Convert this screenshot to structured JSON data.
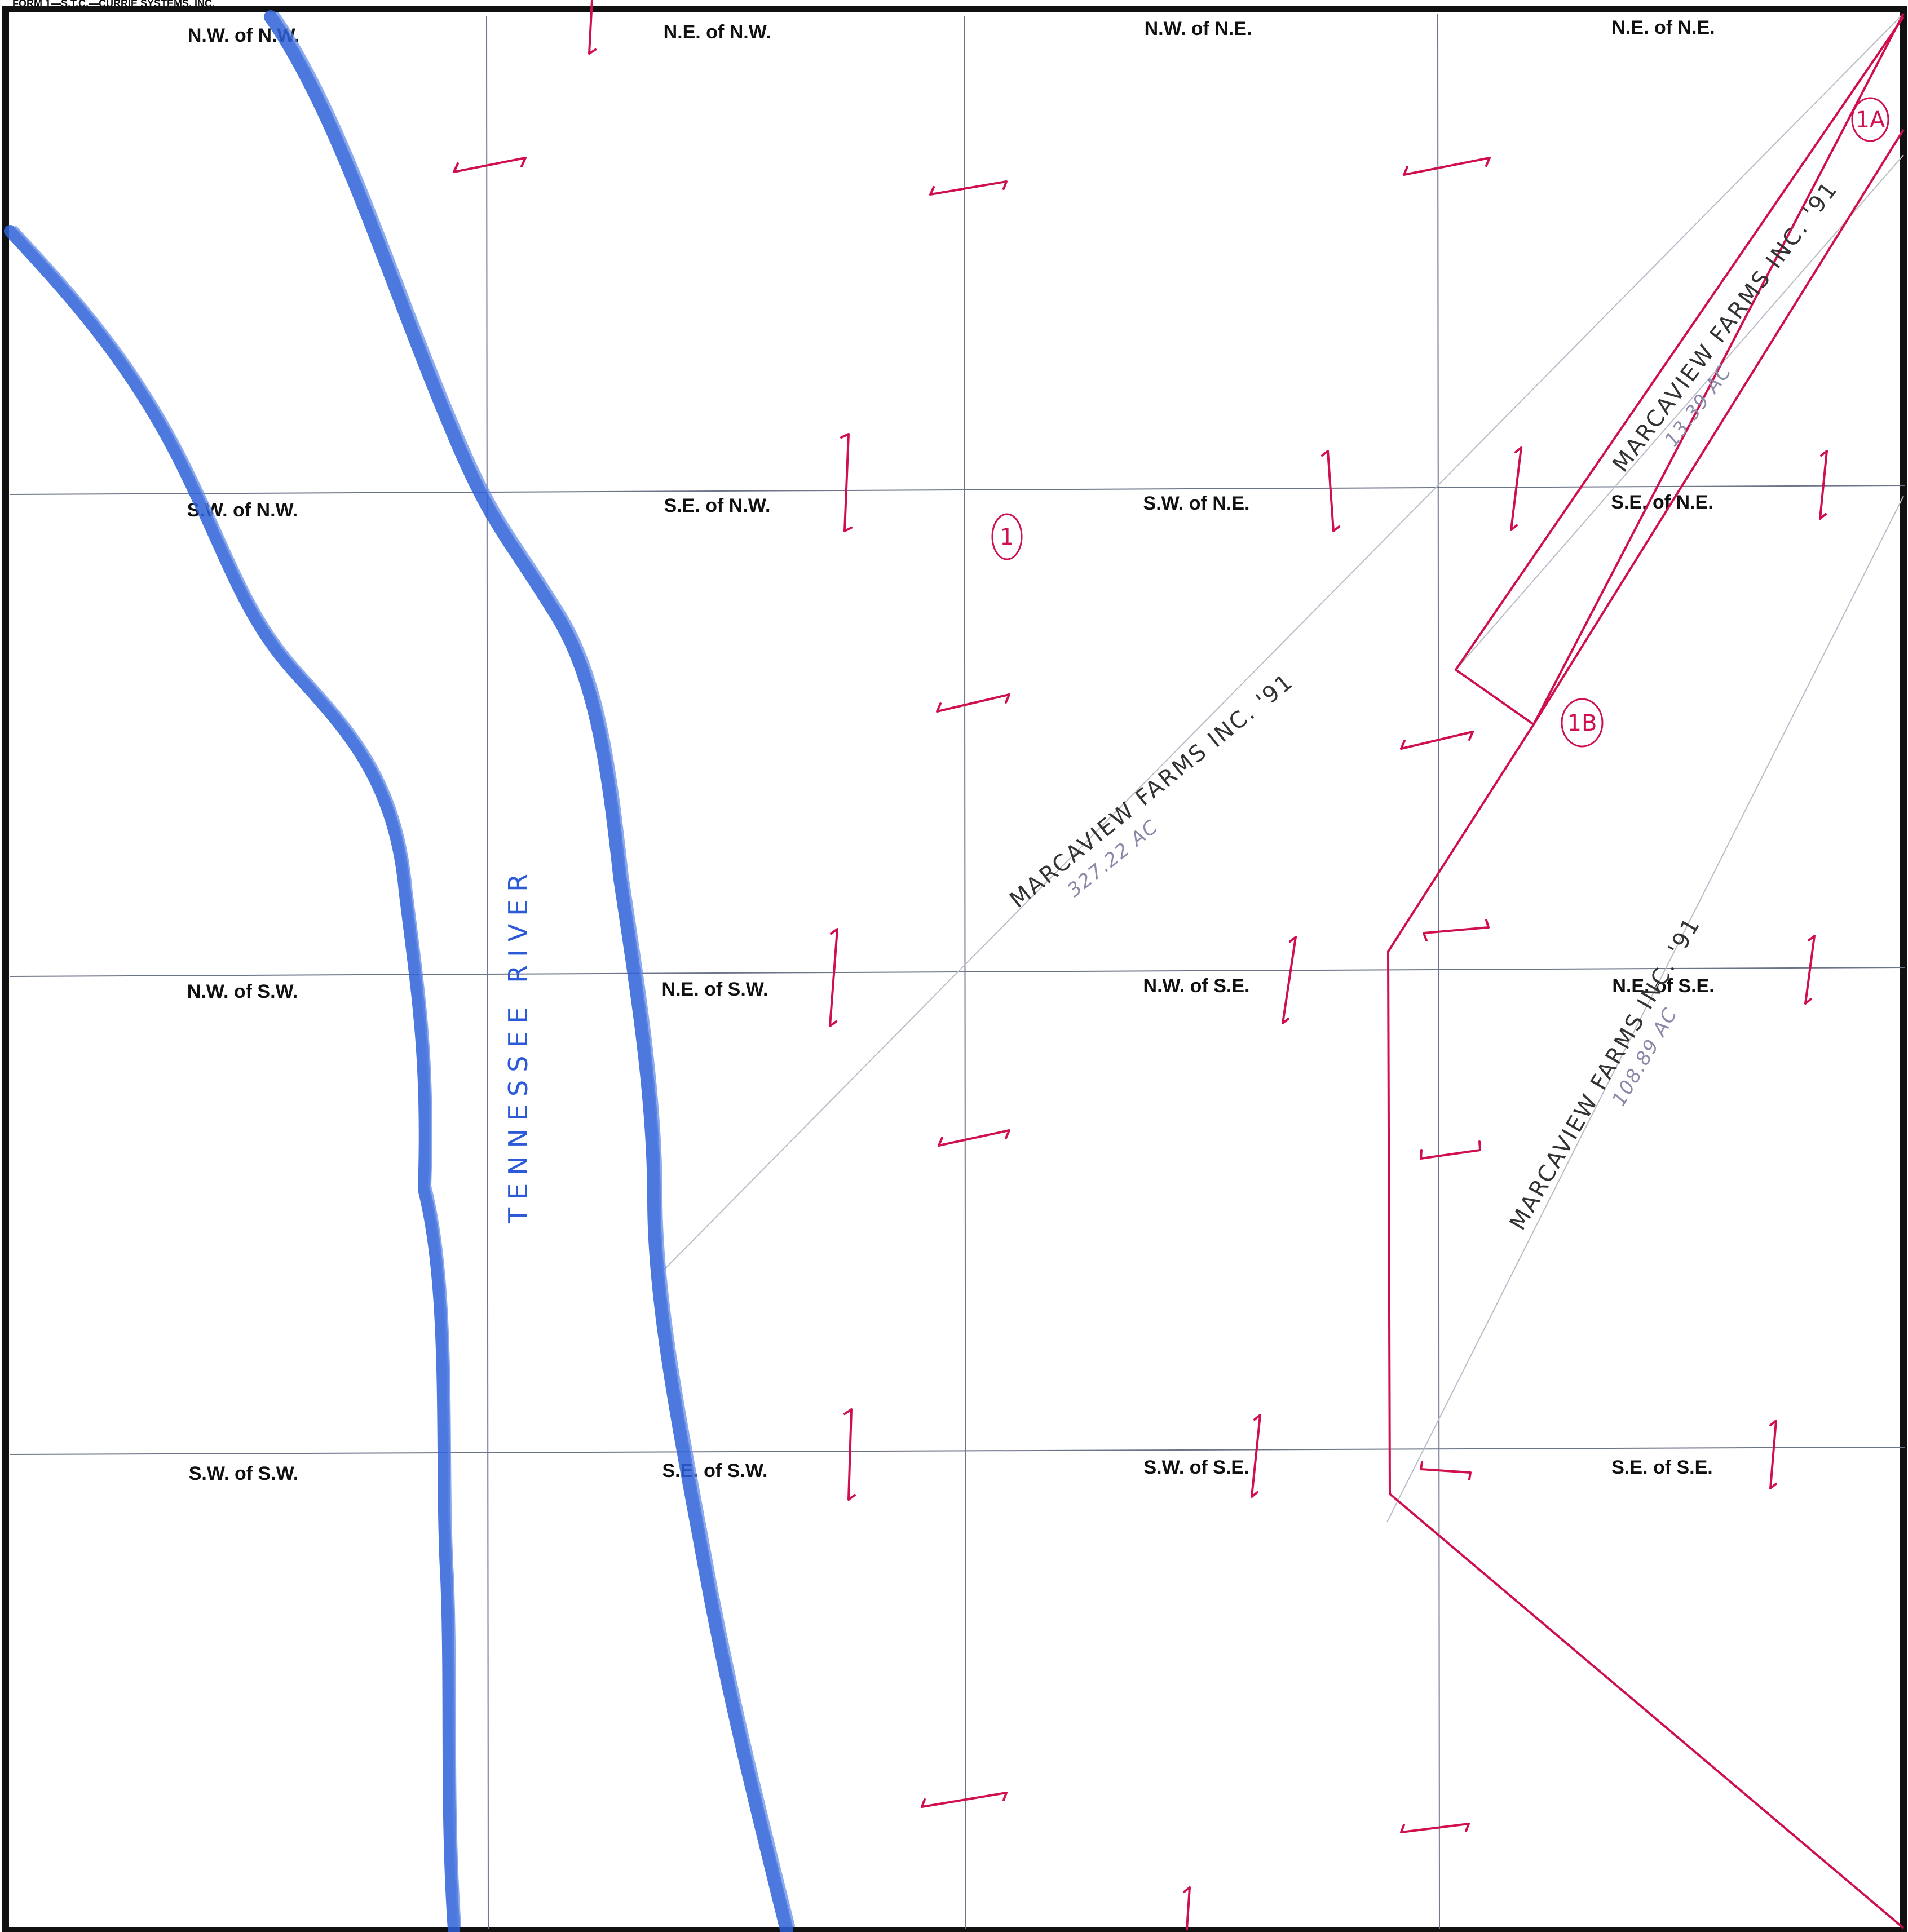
{
  "form_label": "FORM 1—S.T.C.—CURRIE SYSTEMS, INC.",
  "quarter_labels": [
    "N.W. of N.W.",
    "N.E. of N.W.",
    "N.W. of N.E.",
    "N.E. of N.E.",
    "S.W. of N.W.",
    "S.E. of N.W.",
    "S.W. of N.E.",
    "S.E. of N.E.",
    "N.W. of S.W.",
    "N.E. of S.W.",
    "N.W. of S.E.",
    "N.E. of S.E.",
    "S.W. of S.W.",
    "S.E. of S.W.",
    "S.W. of S.E.",
    "S.E. of S.E."
  ],
  "river_label": "TENNESSEE RIVER",
  "parcels": [
    {
      "tract": "1",
      "owner": "MARCAVIEW FARMS INC. '91",
      "acres": "327.22 AC"
    },
    {
      "tract": "1A",
      "owner": "MARCAVIEW FARMS INC. '91",
      "acres": "13.39 AC"
    },
    {
      "tract": "1B",
      "owner": "MARCAVIEW FARMS INC. '91",
      "acres": "108.89 AC"
    }
  ],
  "colors": {
    "river": "#2e62d9",
    "boundary": "#d0104c",
    "grid": "#6d7488",
    "border": "#111111"
  }
}
